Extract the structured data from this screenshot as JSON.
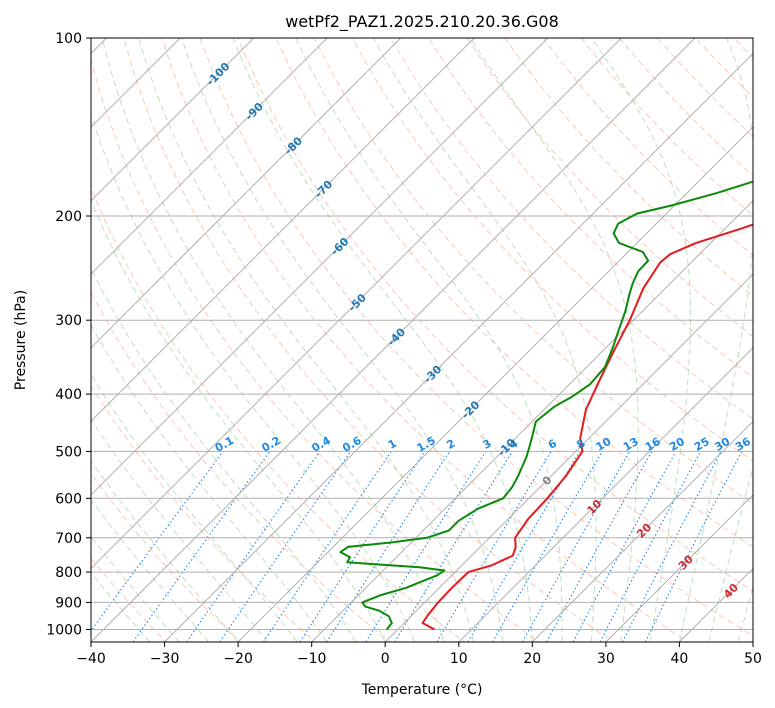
{
  "chart_data": {
    "type": "line",
    "title": "wetPf2_PAZ1.2025.210.20.36.G08",
    "xlabel": "Temperature (°C)",
    "ylabel": "Pressure (hPa)",
    "xlim": [
      -40,
      50
    ],
    "ylim": [
      1050,
      100
    ],
    "y_scale": "log",
    "grid": true,
    "x_ticks": [
      -40,
      -30,
      -20,
      -10,
      0,
      10,
      20,
      30,
      40,
      50
    ],
    "y_ticks": [
      100,
      200,
      300,
      400,
      500,
      600,
      700,
      800,
      900,
      1000
    ],
    "series": [
      {
        "role": "temperature",
        "color": "#e41a1c",
        "points": [
          [
            5.0,
            1000
          ],
          [
            2.5,
            975
          ],
          [
            2.2,
            950
          ],
          [
            1.8,
            900
          ],
          [
            1.7,
            850
          ],
          [
            1.8,
            800
          ],
          [
            4.0,
            780
          ],
          [
            5.6,
            750
          ],
          [
            4.8,
            725
          ],
          [
            3.5,
            700
          ],
          [
            2.7,
            650
          ],
          [
            2.5,
            600
          ],
          [
            2.0,
            550
          ],
          [
            0.9,
            500
          ],
          [
            -1.2,
            475
          ],
          [
            -4.3,
            425
          ],
          [
            -6.4,
            380
          ],
          [
            -8.4,
            340
          ],
          [
            -10.5,
            300
          ],
          [
            -13.0,
            265
          ],
          [
            -14.2,
            240
          ],
          [
            -14.0,
            232
          ],
          [
            -12.0,
            222
          ],
          [
            -7.8,
            210
          ],
          [
            -4.5,
            200
          ],
          [
            -3.3,
            188
          ],
          [
            -2.3,
            180
          ],
          [
            1.6,
            170
          ],
          [
            5.6,
            163
          ],
          [
            9.9,
            155
          ],
          [
            13.4,
            145
          ],
          [
            14.2,
            134
          ],
          [
            14.6,
            125
          ],
          [
            15.0,
            120
          ],
          [
            18.0,
            112
          ],
          [
            21.5,
            106
          ],
          [
            23.2,
            100
          ]
        ]
      },
      {
        "role": "dewpoint",
        "color": "#0a8a0a",
        "points": [
          [
            -1.5,
            1000
          ],
          [
            -1.7,
            975
          ],
          [
            -3.0,
            950
          ],
          [
            -5.0,
            930
          ],
          [
            -7.5,
            915
          ],
          [
            -8.5,
            900
          ],
          [
            -7.0,
            875
          ],
          [
            -4.5,
            850
          ],
          [
            -2.0,
            810
          ],
          [
            -1.7,
            795
          ],
          [
            -5.5,
            785
          ],
          [
            -16.0,
            770
          ],
          [
            -16.3,
            755
          ],
          [
            -18.3,
            740
          ],
          [
            -18.0,
            725
          ],
          [
            -12.5,
            712
          ],
          [
            -8.5,
            700
          ],
          [
            -6.5,
            680
          ],
          [
            -6.5,
            655
          ],
          [
            -5.5,
            625
          ],
          [
            -3.5,
            600
          ],
          [
            -3.8,
            575
          ],
          [
            -4.5,
            550
          ],
          [
            -6.0,
            510
          ],
          [
            -7.5,
            480
          ],
          [
            -9.5,
            445
          ],
          [
            -9.0,
            420
          ],
          [
            -8.0,
            405
          ],
          [
            -7.2,
            385
          ],
          [
            -7.5,
            360
          ],
          [
            -9.0,
            335
          ],
          [
            -10.8,
            310
          ],
          [
            -12.3,
            290
          ],
          [
            -14.0,
            272
          ],
          [
            -15.1,
            260
          ],
          [
            -16.0,
            248
          ],
          [
            -16.1,
            238
          ],
          [
            -18.0,
            230
          ],
          [
            -22.5,
            222
          ],
          [
            -24.5,
            214
          ],
          [
            -25.2,
            206
          ],
          [
            -24.0,
            198
          ],
          [
            -20.5,
            192
          ],
          [
            -16.0,
            183
          ],
          [
            -12.6,
            175
          ],
          [
            -11.2,
            165
          ],
          [
            -11.0,
            152
          ],
          [
            -11.6,
            144
          ],
          [
            -9.0,
            135
          ],
          [
            -3.5,
            122
          ],
          [
            1.7,
            110
          ],
          [
            2.5,
            100
          ]
        ]
      }
    ],
    "isotherm_labels": [
      "-100",
      "-90",
      "-80",
      "-70",
      "-60",
      "-50",
      "-40",
      "-30",
      "-20",
      "-10",
      "0",
      "10",
      "20",
      "30",
      "40"
    ],
    "mixing_ratio_labels": [
      "0.1",
      "0.2",
      "0.4",
      "0.6",
      "1",
      "1.5",
      "2",
      "3",
      "4",
      "6",
      "8",
      "10",
      "13",
      "16",
      "20",
      "25",
      "30",
      "36"
    ]
  }
}
